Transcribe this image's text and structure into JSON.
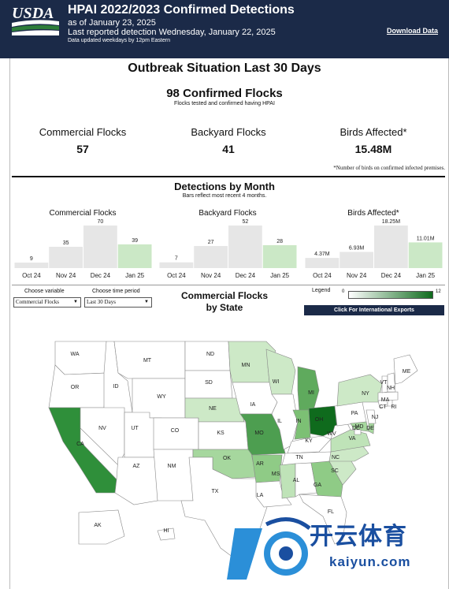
{
  "header": {
    "logo_text": "USDA",
    "title": "HPAI 2022/2023 Confirmed Detections",
    "as_of": "as of January 23, 2025",
    "last_detection": "Last reported detection Wednesday, January 22, 2025",
    "update_note": "Data updated weekdays by 12pm Eastern",
    "download_link": "Download Data"
  },
  "outbreak": {
    "title": "Outbreak Situation Last 30 Days",
    "confirmed_title": "98 Confirmed Flocks",
    "confirmed_sub": "Flocks tested and confirmed having HPAI",
    "kpis": [
      {
        "label": "Commercial Flocks",
        "value": "57"
      },
      {
        "label": "Backyard Flocks",
        "value": "41"
      },
      {
        "label": "Birds Affected*",
        "value": "15.48M"
      }
    ],
    "footnote": "*Number of birds on confirmed infected premises."
  },
  "detections": {
    "title": "Detections by Month",
    "subtitle": "Bars reflect most recent 4 months."
  },
  "chart_data": [
    {
      "type": "bar",
      "title": "Commercial Flocks",
      "categories": [
        "Oct 24",
        "Nov 24",
        "Dec 24",
        "Jan 25"
      ],
      "values": [
        9,
        35,
        70,
        39
      ],
      "value_labels": [
        "9",
        "35",
        "70",
        "39"
      ],
      "ylim": [
        0,
        70
      ],
      "colors": [
        "#e6e6e6",
        "#e6e6e6",
        "#e6e6e6",
        "#cbe8c6"
      ]
    },
    {
      "type": "bar",
      "title": "Backyard Flocks",
      "categories": [
        "Oct 24",
        "Nov 24",
        "Dec 24",
        "Jan 25"
      ],
      "values": [
        7,
        27,
        52,
        28
      ],
      "value_labels": [
        "7",
        "27",
        "52",
        "28"
      ],
      "ylim": [
        0,
        52
      ],
      "colors": [
        "#e6e6e6",
        "#e6e6e6",
        "#e6e6e6",
        "#cbe8c6"
      ]
    },
    {
      "type": "bar",
      "title": "Birds Affected*",
      "categories": [
        "Oct 24",
        "Nov 24",
        "Dec 24",
        "Jan 25"
      ],
      "values": [
        4.37,
        6.93,
        18.25,
        11.01
      ],
      "value_labels": [
        "4.37M",
        "6.93M",
        "18.25M",
        "11.01M"
      ],
      "ylim": [
        0,
        18.25
      ],
      "colors": [
        "#e6e6e6",
        "#e6e6e6",
        "#e6e6e6",
        "#cbe8c6"
      ]
    }
  ],
  "controls": {
    "variable_label": "Choose variable",
    "variable_value": "Commercial Flocks",
    "period_label": "Choose time period",
    "period_value": "Last 30 Days",
    "map_title_line1": "Commercial Flocks",
    "map_title_line2": "by State",
    "legend_label": "Legend",
    "legend_min": "0",
    "legend_max": "12",
    "intl_button": "Click For International Exports"
  },
  "map": {
    "states": [
      {
        "abbr": "WA",
        "color": "#ffffff"
      },
      {
        "abbr": "OR",
        "color": "#ffffff"
      },
      {
        "abbr": "CA",
        "color": "#2f8f3a"
      },
      {
        "abbr": "ID",
        "color": "#ffffff"
      },
      {
        "abbr": "NV",
        "color": "#ffffff"
      },
      {
        "abbr": "MT",
        "color": "#ffffff"
      },
      {
        "abbr": "WY",
        "color": "#ffffff"
      },
      {
        "abbr": "UT",
        "color": "#ffffff"
      },
      {
        "abbr": "AZ",
        "color": "#ffffff"
      },
      {
        "abbr": "CO",
        "color": "#ffffff"
      },
      {
        "abbr": "NM",
        "color": "#ffffff"
      },
      {
        "abbr": "ND",
        "color": "#ffffff"
      },
      {
        "abbr": "SD",
        "color": "#ffffff"
      },
      {
        "abbr": "NE",
        "color": "#cde9c7"
      },
      {
        "abbr": "KS",
        "color": "#ffffff"
      },
      {
        "abbr": "OK",
        "color": "#a6d79e"
      },
      {
        "abbr": "TX",
        "color": "#ffffff"
      },
      {
        "abbr": "MN",
        "color": "#cde9c7"
      },
      {
        "abbr": "IA",
        "color": "#ffffff"
      },
      {
        "abbr": "MO",
        "color": "#4d9e50"
      },
      {
        "abbr": "AR",
        "color": "#8fcb86"
      },
      {
        "abbr": "LA",
        "color": "#ffffff"
      },
      {
        "abbr": "WI",
        "color": "#cde9c7"
      },
      {
        "abbr": "IL",
        "color": "#ffffff"
      },
      {
        "abbr": "MI",
        "color": "#5faa5d"
      },
      {
        "abbr": "IN",
        "color": "#7cc074"
      },
      {
        "abbr": "OH",
        "color": "#0f6b1d"
      },
      {
        "abbr": "KY",
        "color": "#ffffff"
      },
      {
        "abbr": "TN",
        "color": "#ffffff"
      },
      {
        "abbr": "MS",
        "color": "#bfe3b8"
      },
      {
        "abbr": "AL",
        "color": "#ffffff"
      },
      {
        "abbr": "GA",
        "color": "#8fcb86"
      },
      {
        "abbr": "FL",
        "color": "#ffffff"
      },
      {
        "abbr": "SC",
        "color": "#cde9c7"
      },
      {
        "abbr": "NC",
        "color": "#cde9c7"
      },
      {
        "abbr": "VA",
        "color": "#bfe3b8"
      },
      {
        "abbr": "WV",
        "color": "#ffffff"
      },
      {
        "abbr": "PA",
        "color": "#ffffff"
      },
      {
        "abbr": "NY",
        "color": "#cde9c7"
      },
      {
        "abbr": "MD",
        "color": "#a6d79e"
      },
      {
        "abbr": "DE",
        "color": "#a6d79e"
      },
      {
        "abbr": "DC",
        "color": "#ffffff"
      },
      {
        "abbr": "NJ",
        "color": "#ffffff"
      },
      {
        "abbr": "CT",
        "color": "#ffffff"
      },
      {
        "abbr": "RI",
        "color": "#ffffff"
      },
      {
        "abbr": "MA",
        "color": "#ffffff"
      },
      {
        "abbr": "VT",
        "color": "#ffffff"
      },
      {
        "abbr": "NH",
        "color": "#ffffff"
      },
      {
        "abbr": "ME",
        "color": "#ffffff"
      },
      {
        "abbr": "AK",
        "color": "#ffffff"
      },
      {
        "abbr": "HI",
        "color": "#ffffff"
      }
    ]
  },
  "watermark": {
    "chinese": "开云体育",
    "latin": "kaiyun.com"
  },
  "colors": {
    "header_bg": "#1b2a48",
    "bar_gray": "#e6e6e6",
    "bar_current": "#cbe8c6",
    "legend_high": "#0f6b1d",
    "watermark_blue": "#1a4fa0"
  }
}
